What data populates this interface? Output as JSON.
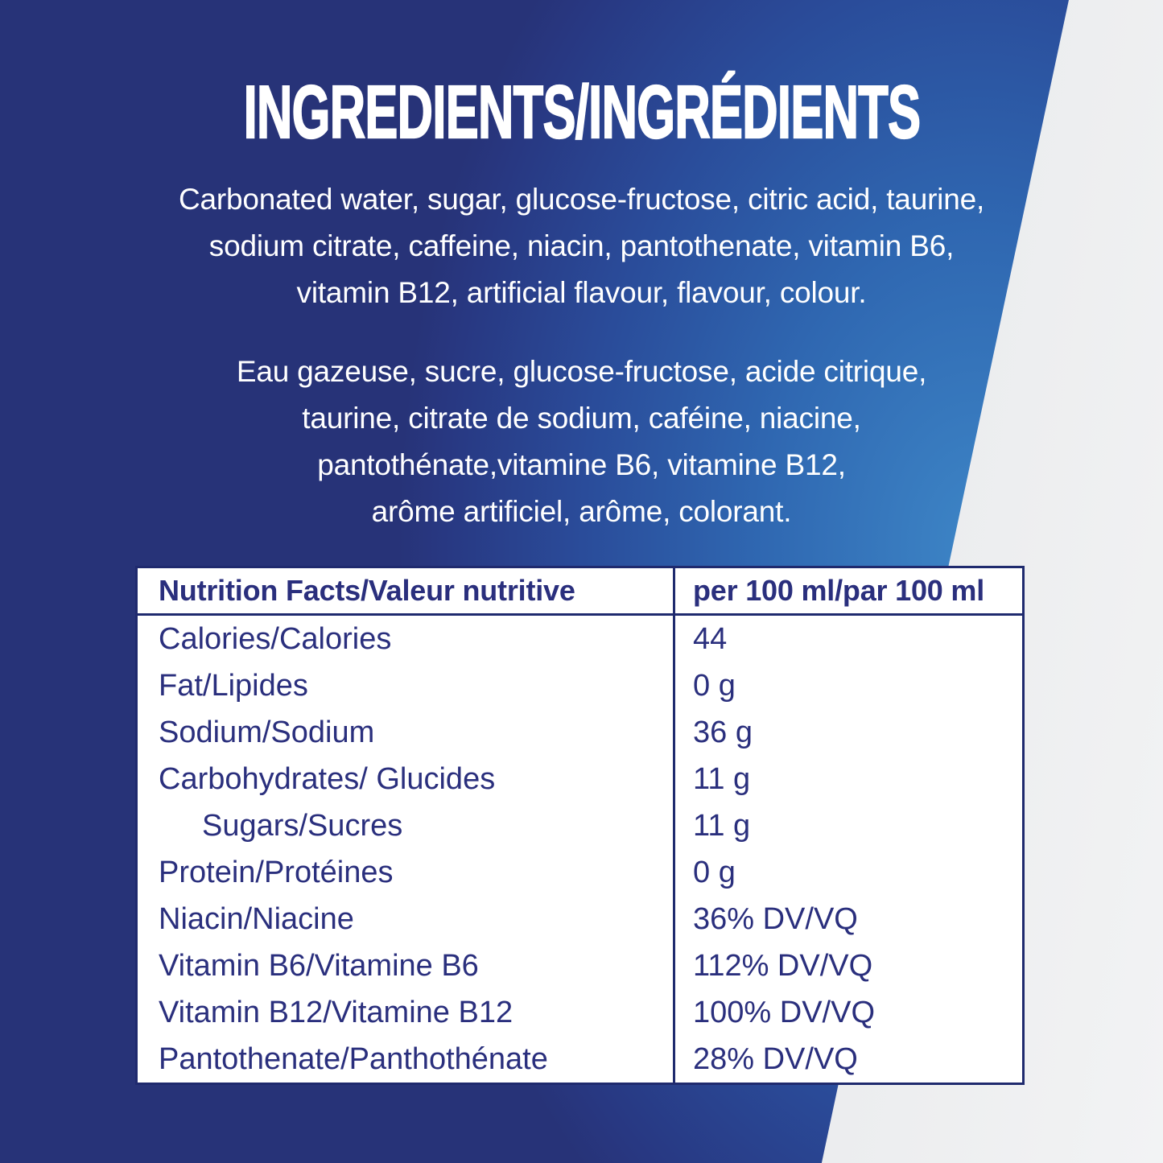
{
  "title": "INGREDIENTS/INGRÉDIENTS",
  "ingredients_en": {
    "lines": [
      "Carbonated water, sugar, glucose-fructose, citric acid, taurine,",
      "sodium citrate, caffeine, niacin, pantothenate, vitamin B6,",
      "vitamin B12, artificial flavour, flavour, colour."
    ]
  },
  "ingredients_fr": {
    "lines": [
      "Eau gazeuse, sucre, glucose-fructose, acide citrique,",
      "taurine, citrate de sodium, caféine, niacine,",
      "pantothénate,vitamine B6, vitamine B12,",
      "arôme artificiel, arôme, colorant."
    ]
  },
  "table": {
    "header": {
      "label": "Nutrition Facts/Valeur nutritive",
      "value": "per 100 ml/par 100 ml"
    },
    "rows": [
      {
        "label": "Calories/Calories",
        "value": "44",
        "indent": false
      },
      {
        "label": "Fat/Lipides",
        "value": "0 g",
        "indent": false
      },
      {
        "label": "Sodium/Sodium",
        "value": "36 g",
        "indent": false
      },
      {
        "label": "Carbohydrates/ Glucides",
        "value": "11 g",
        "indent": false
      },
      {
        "label": "Sugars/Sucres",
        "value": "11 g",
        "indent": true
      },
      {
        "label": "Protein/Protéines",
        "value": "0 g",
        "indent": false
      },
      {
        "label": "Niacin/Niacine",
        "value": "36% DV/VQ",
        "indent": false
      },
      {
        "label": "Vitamin B6/Vitamine B6",
        "value": "112% DV/VQ",
        "indent": false
      },
      {
        "label": "Vitamin B12/Vitamine B12",
        "value": "100% DV/VQ",
        "indent": false
      },
      {
        "label": "Pantothenate/Panthothénate",
        "value": "28% DV/VQ",
        "indent": false
      }
    ]
  },
  "colors": {
    "background_navy": "#283882",
    "background_azure_highlight": "#3d85c6",
    "diagonal_band_silver": "#eceded",
    "table_border_navy": "#1f2a6e",
    "table_text_navy": "#2a2f7d",
    "text_white": "#ffffff"
  }
}
